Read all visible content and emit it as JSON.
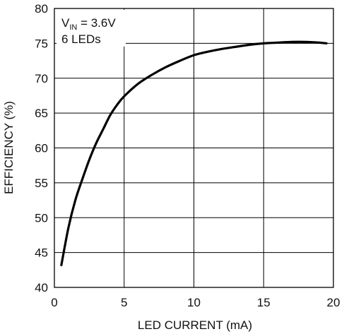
{
  "chart_data": {
    "type": "line",
    "xlabel": "LED CURRENT (mA)",
    "ylabel": "EFFICIENCY (%)",
    "xlim": [
      0,
      20
    ],
    "ylim": [
      40,
      80
    ],
    "x_ticks": [
      "0",
      "5",
      "10",
      "15",
      "20"
    ],
    "y_ticks": [
      "40",
      "45",
      "50",
      "55",
      "60",
      "65",
      "70",
      "75",
      "80"
    ],
    "grid": true,
    "annotation": {
      "v_main": "V",
      "v_sub": "IN",
      "v_value": " = 3.6V",
      "line2": "6 LEDs"
    },
    "series": [
      {
        "x": [
          0.5,
          1,
          1.5,
          2,
          2.5,
          3,
          3.5,
          4,
          4.5,
          5,
          6,
          7,
          8,
          9,
          10,
          11,
          12,
          13,
          14,
          15,
          16,
          17,
          18,
          19,
          19.5
        ],
        "y": [
          43.2,
          48.5,
          52.5,
          55.5,
          58.3,
          60.7,
          62.7,
          64.7,
          66.2,
          67.4,
          69.2,
          70.5,
          71.6,
          72.5,
          73.3,
          73.8,
          74.2,
          74.5,
          74.8,
          75.0,
          75.1,
          75.2,
          75.2,
          75.1,
          75.0
        ],
        "color": "#000000"
      }
    ]
  }
}
